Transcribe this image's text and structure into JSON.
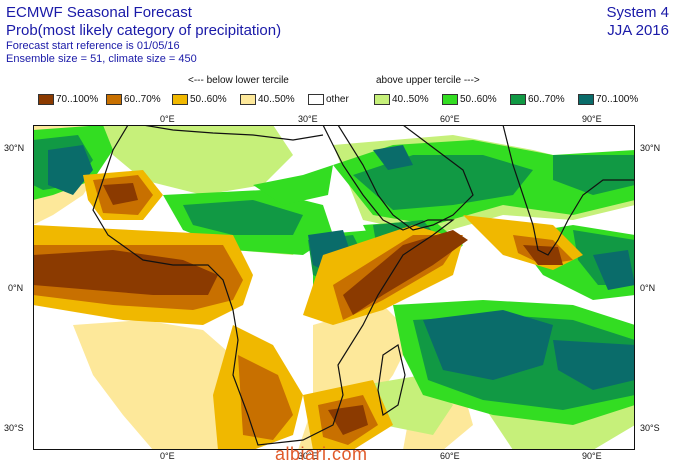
{
  "header": {
    "line1": "ECMWF Seasonal Forecast",
    "line2": "Prob(most likely category of precipitation)",
    "line3": "Forecast start reference is 01/05/16",
    "line4": "Ensemble size = 51, climate size = 450",
    "system": "System 4",
    "season": "JJA 2016"
  },
  "terciles": {
    "below": "<--- below lower tercile",
    "above": "above upper tercile --->"
  },
  "legend": [
    {
      "label": "70..100%",
      "color": "#8b3a00"
    },
    {
      "label": "60..70%",
      "color": "#c87000"
    },
    {
      "label": "50..60%",
      "color": "#f0b800"
    },
    {
      "label": "40..50%",
      "color": "#fde89a"
    },
    {
      "label": "other",
      "color": "#ffffff"
    },
    {
      "label": "40..50%",
      "color": "#c6f07a"
    },
    {
      "label": "50..60%",
      "color": "#33dd22"
    },
    {
      "label": "60..70%",
      "color": "#119944"
    },
    {
      "label": "70..100%",
      "color": "#0a6c6a"
    }
  ],
  "axes": {
    "lon_labels": [
      "0°E",
      "30°E",
      "60°E",
      "90°E"
    ],
    "lat_left": [
      "30°N",
      "0°N",
      "30°S"
    ],
    "lat_right": [
      "30°N",
      "0°N",
      "30°S"
    ]
  },
  "watermark": "albiari.com"
}
